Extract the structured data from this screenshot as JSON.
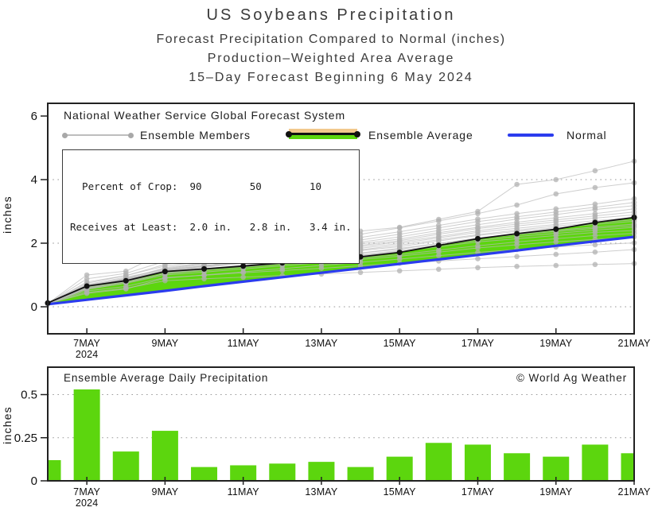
{
  "title": {
    "line1": "US Soybeans Precipitation",
    "line2": "Forecast Precipitation Compared to Normal (inches)",
    "line3": "Production–Weighted Area Average",
    "line4": "15–Day Forecast Beginning 6 May 2024"
  },
  "top_chart": {
    "source_label": "National Weather Service Global Forecast System",
    "legend": [
      {
        "label": "Ensemble Members",
        "swatch": "gray-line-with-dots",
        "color": "#bdbdbd"
      },
      {
        "label": "Ensemble Average",
        "swatch": "black-line-green-tan-band",
        "color": "#111111"
      },
      {
        "label": "Normal",
        "swatch": "blue-line",
        "color": "#2b3cee"
      }
    ],
    "stats_box": {
      "line1": "  Percent of Crop:  90        50        10",
      "line2": "Receives at Least:  2.0 in.   2.8 in.   3.4 in."
    }
  },
  "bottom_chart": {
    "title": "Ensemble Average Daily Precipitation",
    "copyright": "© World Ag Weather"
  },
  "colors": {
    "green": "#5cd60e",
    "tan": "#f2c88c",
    "blue": "#2b3cee",
    "gray_member": "#b9b9b9",
    "black": "#111111",
    "text": "#1c1c1c"
  },
  "chart_data": [
    {
      "type": "line",
      "title": "Forecast cumulative precipitation vs normal",
      "ylabel": "inches",
      "ylim": [
        0,
        6
      ],
      "yticks": [
        0,
        2,
        4,
        6
      ],
      "ytick_labels": [
        "0",
        "2",
        "4",
        "6"
      ],
      "grid_values": [
        0,
        2,
        4
      ],
      "x_tick_labels": [
        "7MAY",
        "9MAY",
        "11MAY",
        "13MAY",
        "15MAY",
        "17MAY",
        "19MAY",
        "21MAY"
      ],
      "x_year_label": "2024",
      "days": [
        "6MAY",
        "7MAY",
        "8MAY",
        "9MAY",
        "10MAY",
        "11MAY",
        "12MAY",
        "13MAY",
        "14MAY",
        "15MAY",
        "16MAY",
        "17MAY",
        "18MAY",
        "19MAY",
        "20MAY",
        "21MAY"
      ],
      "series": [
        {
          "name": "Ensemble Average",
          "color": "#111111",
          "values": [
            0.12,
            0.65,
            0.82,
            1.11,
            1.19,
            1.28,
            1.38,
            1.49,
            1.57,
            1.71,
            1.93,
            2.14,
            2.3,
            2.44,
            2.65,
            2.81
          ]
        },
        {
          "name": "Normal",
          "color": "#2b3cee",
          "values": [
            0.08,
            0.22,
            0.36,
            0.5,
            0.65,
            0.79,
            0.93,
            1.07,
            1.21,
            1.35,
            1.49,
            1.63,
            1.77,
            1.92,
            2.06,
            2.2
          ]
        }
      ],
      "band": {
        "between": [
          "Ensemble Average",
          "Normal"
        ],
        "above_color": "#5cd60e",
        "below_color": "#f2c88c"
      },
      "ensemble_members": [
        [
          0.1,
          0.45,
          0.58,
          0.82,
          0.88,
          0.93,
          0.98,
          1.03,
          1.08,
          1.13,
          1.18,
          1.23,
          1.27,
          1.3,
          1.33,
          1.36
        ],
        [
          0.1,
          0.5,
          0.64,
          0.92,
          0.99,
          1.07,
          1.14,
          1.21,
          1.29,
          1.37,
          1.44,
          1.51,
          1.58,
          1.65,
          1.72,
          1.8
        ],
        [
          0.1,
          0.42,
          0.56,
          0.9,
          1.0,
          1.1,
          1.2,
          1.3,
          1.4,
          1.5,
          1.61,
          1.71,
          1.8,
          1.88,
          1.95,
          2.01
        ],
        [
          0.1,
          0.55,
          0.74,
          1.0,
          1.09,
          1.19,
          1.29,
          1.39,
          1.49,
          1.59,
          1.72,
          1.85,
          1.95,
          2.04,
          2.12,
          2.2
        ],
        [
          0.1,
          0.6,
          0.79,
          1.04,
          1.14,
          1.24,
          1.34,
          1.44,
          1.54,
          1.64,
          1.78,
          1.92,
          2.04,
          2.14,
          2.24,
          2.31
        ],
        [
          0.1,
          0.68,
          0.88,
          1.08,
          1.18,
          1.29,
          1.41,
          1.51,
          1.61,
          1.74,
          1.89,
          2.04,
          2.14,
          2.24,
          2.34,
          2.4
        ],
        [
          0.1,
          0.55,
          0.75,
          1.05,
          1.17,
          1.29,
          1.41,
          1.54,
          1.64,
          1.77,
          1.94,
          2.09,
          2.21,
          2.31,
          2.41,
          2.5
        ],
        [
          0.1,
          0.63,
          0.84,
          1.09,
          1.19,
          1.31,
          1.44,
          1.57,
          1.69,
          1.84,
          1.99,
          2.14,
          2.27,
          2.37,
          2.47,
          2.55
        ],
        [
          0.1,
          0.59,
          0.79,
          1.11,
          1.24,
          1.37,
          1.49,
          1.59,
          1.69,
          1.81,
          1.99,
          2.17,
          2.29,
          2.41,
          2.51,
          2.6
        ],
        [
          0.1,
          0.66,
          0.86,
          1.14,
          1.27,
          1.39,
          1.51,
          1.64,
          1.77,
          1.89,
          2.07,
          2.24,
          2.37,
          2.49,
          2.59,
          2.69
        ],
        [
          0.1,
          0.61,
          0.84,
          1.14,
          1.27,
          1.41,
          1.54,
          1.67,
          1.79,
          1.94,
          2.11,
          2.27,
          2.41,
          2.54,
          2.64,
          2.74
        ],
        [
          0.1,
          0.65,
          0.87,
          1.17,
          1.29,
          1.44,
          1.57,
          1.71,
          1.84,
          1.99,
          2.17,
          2.34,
          2.47,
          2.59,
          2.71,
          2.8
        ],
        [
          0.1,
          0.57,
          0.79,
          1.14,
          1.29,
          1.44,
          1.59,
          1.74,
          1.89,
          2.04,
          2.21,
          2.39,
          2.54,
          2.67,
          2.79,
          2.89
        ],
        [
          0.1,
          0.7,
          0.93,
          1.18,
          1.33,
          1.48,
          1.63,
          1.78,
          1.93,
          2.08,
          2.28,
          2.46,
          2.6,
          2.73,
          2.86,
          2.98
        ],
        [
          0.1,
          0.66,
          0.9,
          1.2,
          1.36,
          1.5,
          1.66,
          1.83,
          1.98,
          2.13,
          2.33,
          2.5,
          2.66,
          2.8,
          2.93,
          3.08
        ],
        [
          0.1,
          0.63,
          0.88,
          1.23,
          1.38,
          1.56,
          1.73,
          1.88,
          2.03,
          2.2,
          2.4,
          2.58,
          2.76,
          2.9,
          3.06,
          3.18
        ],
        [
          0.1,
          0.78,
          0.98,
          1.28,
          1.43,
          1.58,
          1.76,
          1.93,
          2.1,
          2.28,
          2.48,
          2.68,
          2.83,
          2.98,
          3.13,
          3.28
        ],
        [
          0.1,
          0.74,
          0.98,
          1.33,
          1.5,
          1.66,
          1.83,
          2.0,
          2.18,
          2.36,
          2.56,
          2.76,
          2.93,
          3.08,
          3.23,
          3.4
        ],
        [
          0.1,
          0.88,
          1.05,
          1.43,
          1.58,
          1.76,
          1.93,
          2.1,
          2.28,
          2.48,
          2.7,
          2.93,
          3.2,
          3.55,
          3.75,
          3.9
        ],
        [
          0.1,
          1.0,
          1.12,
          1.72,
          1.85,
          2.0,
          2.12,
          2.25,
          2.38,
          2.5,
          2.75,
          3.0,
          3.85,
          4.0,
          4.28,
          4.58
        ]
      ],
      "legend_position": "top-inside"
    },
    {
      "type": "bar",
      "title": "Ensemble Average Daily Precipitation",
      "ylabel": "inches",
      "ylim": [
        0,
        0.66
      ],
      "yticks": [
        0,
        0.25,
        0.5
      ],
      "ytick_labels": [
        "0",
        "0.25",
        "0.5"
      ],
      "grid_values": [
        0.25,
        0.5
      ],
      "x_tick_labels": [
        "7MAY",
        "9MAY",
        "11MAY",
        "13MAY",
        "15MAY",
        "17MAY",
        "19MAY",
        "21MAY"
      ],
      "x_year_label": "2024",
      "categories": [
        "6MAY",
        "7MAY",
        "8MAY",
        "9MAY",
        "10MAY",
        "11MAY",
        "12MAY",
        "13MAY",
        "14MAY",
        "15MAY",
        "16MAY",
        "17MAY",
        "18MAY",
        "19MAY",
        "20MAY",
        "21MAY"
      ],
      "values": [
        0.12,
        0.53,
        0.17,
        0.29,
        0.08,
        0.09,
        0.1,
        0.11,
        0.08,
        0.14,
        0.22,
        0.21,
        0.16,
        0.14,
        0.21,
        0.16
      ],
      "bar_color": "#5cd60e"
    }
  ]
}
